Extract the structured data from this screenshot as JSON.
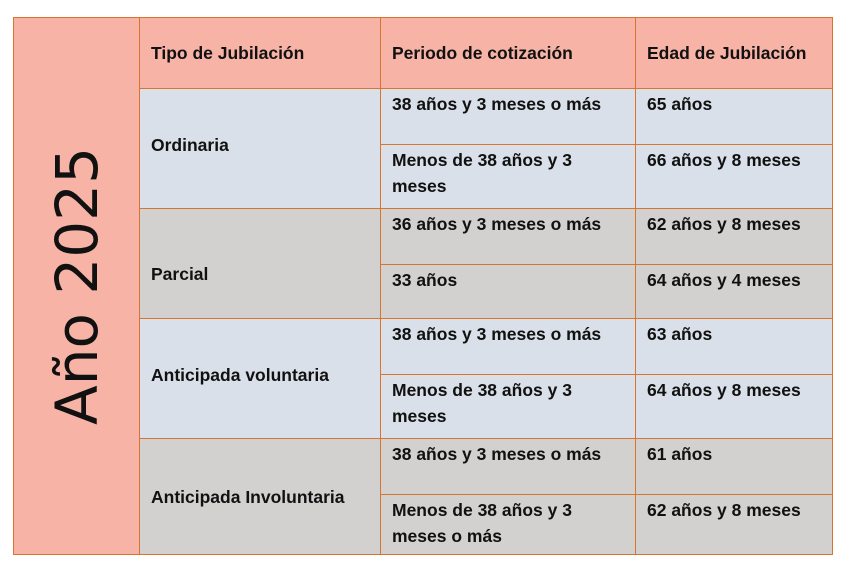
{
  "year_label": "Año 2025",
  "headers": {
    "tipo": "Tipo de Jubilación",
    "periodo": "Periodo de cotización",
    "edad": "Edad de Jubilación"
  },
  "rows": [
    {
      "tipo": "Ordinaria",
      "sub": [
        {
          "periodo": "38 años y 3 meses o más",
          "edad": "65 años"
        },
        {
          "periodo": "Menos de 38 años y 3 meses",
          "edad": "66 años y 8 meses"
        }
      ]
    },
    {
      "tipo": "Parcial",
      "sub": [
        {
          "periodo": "36 años y 3 meses o más",
          "edad": "62 años y 8 meses"
        },
        {
          "periodo": "33 años",
          "edad": "64 años y 4 meses"
        }
      ]
    },
    {
      "tipo": "Anticipada voluntaria",
      "sub": [
        {
          "periodo": "38 años y 3 meses o más",
          "edad": "63 años"
        },
        {
          "periodo": "Menos de 38 años y 3 meses",
          "edad": "64 años y 8 meses"
        }
      ]
    },
    {
      "tipo": "Anticipada Involuntaria",
      "sub": [
        {
          "periodo": "38 años y 3 meses o más",
          "edad": "61 años"
        },
        {
          "periodo": "Menos de 38 años y 3 meses o más",
          "edad": "62 años y 8 meses"
        }
      ]
    }
  ]
}
